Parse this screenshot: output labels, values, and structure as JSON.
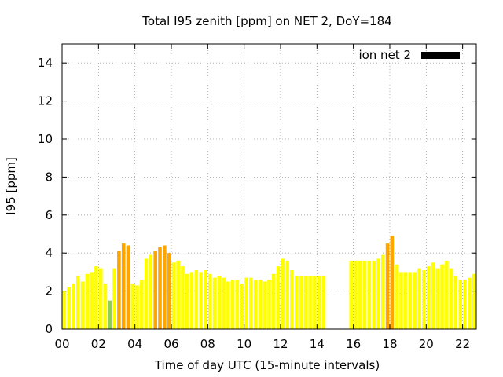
{
  "chart_data": {
    "type": "bar",
    "title": "Total I95 zenith [ppm] on NET 2, DoY=184",
    "xlabel": "Time of day UTC (15-minute intervals)",
    "ylabel": "I95 [ppm]",
    "xlim": [
      0,
      22.75
    ],
    "ylim": [
      0,
      15
    ],
    "bar_width_hours": 0.25,
    "grid": true,
    "legend": {
      "placement": "top-right",
      "entries": [
        {
          "label": "ion net 2",
          "color": "#000000"
        }
      ]
    },
    "x_ticks": [
      {
        "value": 0,
        "label": "00"
      },
      {
        "value": 2,
        "label": "02"
      },
      {
        "value": 4,
        "label": "04"
      },
      {
        "value": 6,
        "label": "06"
      },
      {
        "value": 8,
        "label": "08"
      },
      {
        "value": 10,
        "label": "10"
      },
      {
        "value": 12,
        "label": "12"
      },
      {
        "value": 14,
        "label": "14"
      },
      {
        "value": 16,
        "label": "16"
      },
      {
        "value": 18,
        "label": "18"
      },
      {
        "value": 20,
        "label": "20"
      },
      {
        "value": 22,
        "label": "22"
      }
    ],
    "y_ticks": [
      {
        "value": 0,
        "label": "0"
      },
      {
        "value": 2,
        "label": "2"
      },
      {
        "value": 4,
        "label": "4"
      },
      {
        "value": 6,
        "label": "6"
      },
      {
        "value": 8,
        "label": "8"
      },
      {
        "value": 10,
        "label": "10"
      },
      {
        "value": 12,
        "label": "12"
      },
      {
        "value": 14,
        "label": "14"
      }
    ],
    "colors": {
      "normal": "#ffff00",
      "elevated": "#ffa500",
      "low": "#90d050"
    },
    "bars": [
      {
        "x": 0.0,
        "value": 2.0,
        "level": "normal"
      },
      {
        "x": 0.25,
        "value": 2.2,
        "level": "normal"
      },
      {
        "x": 0.5,
        "value": 2.4,
        "level": "normal"
      },
      {
        "x": 0.75,
        "value": 2.8,
        "level": "normal"
      },
      {
        "x": 1.0,
        "value": 2.5,
        "level": "normal"
      },
      {
        "x": 1.25,
        "value": 2.9,
        "level": "normal"
      },
      {
        "x": 1.5,
        "value": 3.0,
        "level": "normal"
      },
      {
        "x": 1.75,
        "value": 3.3,
        "level": "normal"
      },
      {
        "x": 2.0,
        "value": 3.2,
        "level": "normal"
      },
      {
        "x": 2.25,
        "value": 2.4,
        "level": "normal"
      },
      {
        "x": 2.5,
        "value": 1.5,
        "level": "low"
      },
      {
        "x": 2.75,
        "value": 3.2,
        "level": "normal"
      },
      {
        "x": 3.0,
        "value": 4.1,
        "level": "elevated"
      },
      {
        "x": 3.25,
        "value": 4.5,
        "level": "elevated"
      },
      {
        "x": 3.5,
        "value": 4.4,
        "level": "elevated"
      },
      {
        "x": 3.75,
        "value": 2.4,
        "level": "normal"
      },
      {
        "x": 4.0,
        "value": 2.3,
        "level": "normal"
      },
      {
        "x": 4.25,
        "value": 2.6,
        "level": "normal"
      },
      {
        "x": 4.5,
        "value": 3.7,
        "level": "normal"
      },
      {
        "x": 4.75,
        "value": 3.9,
        "level": "normal"
      },
      {
        "x": 5.0,
        "value": 4.1,
        "level": "elevated"
      },
      {
        "x": 5.25,
        "value": 4.3,
        "level": "elevated"
      },
      {
        "x": 5.5,
        "value": 4.4,
        "level": "elevated"
      },
      {
        "x": 5.75,
        "value": 4.0,
        "level": "elevated"
      },
      {
        "x": 6.0,
        "value": 3.5,
        "level": "normal"
      },
      {
        "x": 6.25,
        "value": 3.6,
        "level": "normal"
      },
      {
        "x": 6.5,
        "value": 3.3,
        "level": "normal"
      },
      {
        "x": 6.75,
        "value": 2.9,
        "level": "normal"
      },
      {
        "x": 7.0,
        "value": 3.0,
        "level": "normal"
      },
      {
        "x": 7.25,
        "value": 3.1,
        "level": "normal"
      },
      {
        "x": 7.5,
        "value": 3.0,
        "level": "normal"
      },
      {
        "x": 7.75,
        "value": 3.1,
        "level": "normal"
      },
      {
        "x": 8.0,
        "value": 2.9,
        "level": "normal"
      },
      {
        "x": 8.25,
        "value": 2.7,
        "level": "normal"
      },
      {
        "x": 8.5,
        "value": 2.8,
        "level": "normal"
      },
      {
        "x": 8.75,
        "value": 2.7,
        "level": "normal"
      },
      {
        "x": 9.0,
        "value": 2.5,
        "level": "normal"
      },
      {
        "x": 9.25,
        "value": 2.6,
        "level": "normal"
      },
      {
        "x": 9.5,
        "value": 2.6,
        "level": "normal"
      },
      {
        "x": 9.75,
        "value": 2.4,
        "level": "normal"
      },
      {
        "x": 10.0,
        "value": 2.7,
        "level": "normal"
      },
      {
        "x": 10.25,
        "value": 2.7,
        "level": "normal"
      },
      {
        "x": 10.5,
        "value": 2.6,
        "level": "normal"
      },
      {
        "x": 10.75,
        "value": 2.6,
        "level": "normal"
      },
      {
        "x": 11.0,
        "value": 2.5,
        "level": "normal"
      },
      {
        "x": 11.25,
        "value": 2.6,
        "level": "normal"
      },
      {
        "x": 11.5,
        "value": 2.9,
        "level": "normal"
      },
      {
        "x": 11.75,
        "value": 3.3,
        "level": "normal"
      },
      {
        "x": 12.0,
        "value": 3.7,
        "level": "normal"
      },
      {
        "x": 12.25,
        "value": 3.6,
        "level": "normal"
      },
      {
        "x": 12.5,
        "value": 3.1,
        "level": "normal"
      },
      {
        "x": 12.75,
        "value": 2.8,
        "level": "normal"
      },
      {
        "x": 13.0,
        "value": 2.8,
        "level": "normal"
      },
      {
        "x": 13.25,
        "value": 2.8,
        "level": "normal"
      },
      {
        "x": 13.5,
        "value": 2.8,
        "level": "normal"
      },
      {
        "x": 13.75,
        "value": 2.8,
        "level": "normal"
      },
      {
        "x": 14.0,
        "value": 2.8,
        "level": "normal"
      },
      {
        "x": 14.25,
        "value": 2.8,
        "level": "normal"
      },
      {
        "x": 15.75,
        "value": 3.6,
        "level": "normal"
      },
      {
        "x": 16.0,
        "value": 3.6,
        "level": "normal"
      },
      {
        "x": 16.25,
        "value": 3.6,
        "level": "normal"
      },
      {
        "x": 16.5,
        "value": 3.6,
        "level": "normal"
      },
      {
        "x": 16.75,
        "value": 3.6,
        "level": "normal"
      },
      {
        "x": 17.0,
        "value": 3.6,
        "level": "normal"
      },
      {
        "x": 17.25,
        "value": 3.7,
        "level": "normal"
      },
      {
        "x": 17.5,
        "value": 3.9,
        "level": "normal"
      },
      {
        "x": 17.75,
        "value": 4.5,
        "level": "elevated"
      },
      {
        "x": 18.0,
        "value": 4.9,
        "level": "elevated"
      },
      {
        "x": 18.25,
        "value": 3.4,
        "level": "normal"
      },
      {
        "x": 18.5,
        "value": 3.0,
        "level": "normal"
      },
      {
        "x": 18.75,
        "value": 3.0,
        "level": "normal"
      },
      {
        "x": 19.0,
        "value": 3.0,
        "level": "normal"
      },
      {
        "x": 19.25,
        "value": 3.0,
        "level": "normal"
      },
      {
        "x": 19.5,
        "value": 3.2,
        "level": "normal"
      },
      {
        "x": 19.75,
        "value": 3.1,
        "level": "normal"
      },
      {
        "x": 20.0,
        "value": 3.3,
        "level": "normal"
      },
      {
        "x": 20.25,
        "value": 3.5,
        "level": "normal"
      },
      {
        "x": 20.5,
        "value": 3.2,
        "level": "normal"
      },
      {
        "x": 20.75,
        "value": 3.4,
        "level": "normal"
      },
      {
        "x": 21.0,
        "value": 3.6,
        "level": "normal"
      },
      {
        "x": 21.25,
        "value": 3.2,
        "level": "normal"
      },
      {
        "x": 21.5,
        "value": 2.8,
        "level": "normal"
      },
      {
        "x": 21.75,
        "value": 2.6,
        "level": "normal"
      },
      {
        "x": 22.0,
        "value": 2.6,
        "level": "normal"
      },
      {
        "x": 22.25,
        "value": 2.7,
        "level": "normal"
      },
      {
        "x": 22.5,
        "value": 2.9,
        "level": "normal"
      }
    ]
  }
}
